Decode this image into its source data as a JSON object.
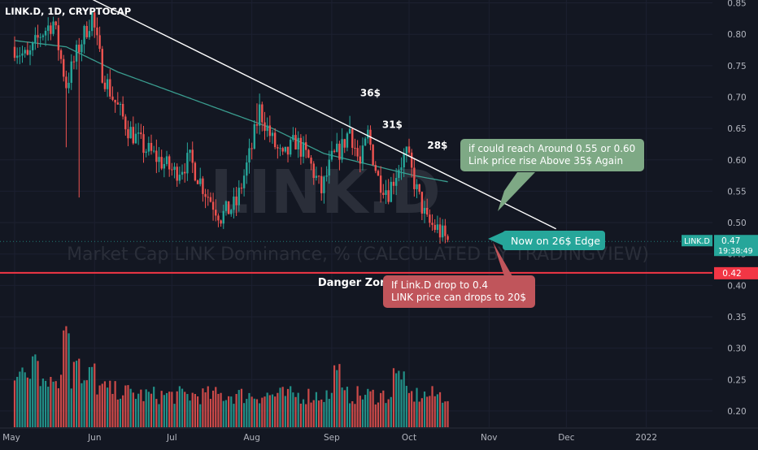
{
  "header": {
    "symbol_line": "LINK.D, 1D, CRYPTOCAP"
  },
  "watermark": {
    "ticker": "LINK.D",
    "description": "Market Cap LINK Dominance, % (CALCULATED BY TRADINGVIEW)"
  },
  "colors": {
    "background": "#131722",
    "up": "#26a69a",
    "down": "#ef5350",
    "ma": "#3a9d8f",
    "trendline": "#ffffff",
    "danger_line": "#f23645",
    "green_note": "#7ea985",
    "red_note": "#c0555b",
    "price_tag": "#26a69a"
  },
  "price_tag": {
    "symbol": "LINK.D",
    "value": "0.47",
    "countdown": "19:38:49"
  },
  "danger_tag": "0.42",
  "annotations": {
    "danger_zone": "Danger Zone",
    "peak_36": "36$",
    "peak_31": "31$",
    "peak_28": "28$",
    "note_green_line1": "if could reach Around 0.55 or 0.60",
    "note_green_line2": "Link price rise Above 35$ Again",
    "note_now": "Now on 26$ Edge",
    "note_red_line1": "If Link.D drop to 0.4",
    "note_red_line2": "LINK price can drops to 20$"
  },
  "chart_data": {
    "type": "candlestick",
    "title": "LINK.D, 1D, CRYPTOCAP",
    "xlabel": "",
    "ylabel": "",
    "ylim": [
      0.175,
      0.85
    ],
    "y_ticks": [
      0.2,
      0.25,
      0.3,
      0.35,
      0.4,
      0.45,
      0.5,
      0.55,
      0.6,
      0.65,
      0.7,
      0.75,
      0.8,
      0.85
    ],
    "y_tick_labels": [
      "0.20",
      "0.25",
      "0.30",
      "0.35",
      "0.40",
      "0.45",
      "0.50",
      "0.55",
      "0.60",
      "0.65",
      "0.70",
      "0.75",
      "0.80",
      "0.85"
    ],
    "x_ticks": [
      "May",
      "Jun",
      "Jul",
      "Aug",
      "Sep",
      "Oct",
      "Nov",
      "Dec",
      "2022"
    ],
    "anchors": [
      {
        "d": 0,
        "v": 0.78
      },
      {
        "d": 5,
        "v": 0.76
      },
      {
        "d": 10,
        "v": 0.8
      },
      {
        "d": 15,
        "v": 0.82
      },
      {
        "d": 20,
        "v": 0.72
      },
      {
        "d": 25,
        "v": 0.78
      },
      {
        "d": 30,
        "v": 0.83
      },
      {
        "d": 34,
        "v": 0.74
      },
      {
        "d": 38,
        "v": 0.7
      },
      {
        "d": 44,
        "v": 0.65
      },
      {
        "d": 50,
        "v": 0.62
      },
      {
        "d": 56,
        "v": 0.6
      },
      {
        "d": 62,
        "v": 0.58
      },
      {
        "d": 68,
        "v": 0.6
      },
      {
        "d": 74,
        "v": 0.55
      },
      {
        "d": 80,
        "v": 0.51
      },
      {
        "d": 86,
        "v": 0.53
      },
      {
        "d": 92,
        "v": 0.62
      },
      {
        "d": 95,
        "v": 0.68
      },
      {
        "d": 100,
        "v": 0.63
      },
      {
        "d": 104,
        "v": 0.6
      },
      {
        "d": 109,
        "v": 0.63
      },
      {
        "d": 114,
        "v": 0.6
      },
      {
        "d": 119,
        "v": 0.55
      },
      {
        "d": 123,
        "v": 0.6
      },
      {
        "d": 127,
        "v": 0.62
      },
      {
        "d": 130,
        "v": 0.65
      },
      {
        "d": 134,
        "v": 0.59
      },
      {
        "d": 137,
        "v": 0.64
      },
      {
        "d": 141,
        "v": 0.57
      },
      {
        "d": 145,
        "v": 0.55
      },
      {
        "d": 149,
        "v": 0.59
      },
      {
        "d": 152,
        "v": 0.61
      },
      {
        "d": 156,
        "v": 0.55
      },
      {
        "d": 160,
        "v": 0.5
      },
      {
        "d": 164,
        "v": 0.49
      },
      {
        "d": 168,
        "v": 0.47
      }
    ],
    "moving_average": [
      {
        "d": 0,
        "v": 0.79
      },
      {
        "d": 20,
        "v": 0.78
      },
      {
        "d": 40,
        "v": 0.74
      },
      {
        "d": 60,
        "v": 0.71
      },
      {
        "d": 80,
        "v": 0.68
      },
      {
        "d": 100,
        "v": 0.65
      },
      {
        "d": 120,
        "v": 0.61
      },
      {
        "d": 140,
        "v": 0.59
      },
      {
        "d": 155,
        "v": 0.575
      },
      {
        "d": 168,
        "v": 0.565
      }
    ],
    "trendline": {
      "d1": 28,
      "v1": 0.86,
      "d2": 210,
      "v2": 0.49
    },
    "danger_level": 0.42,
    "volume_max": 0.34,
    "volume_peaks": [
      {
        "d": 8,
        "v": 0.29
      },
      {
        "d": 20,
        "v": 0.335
      },
      {
        "d": 24,
        "v": 0.28
      },
      {
        "d": 30,
        "v": 0.27
      },
      {
        "d": 125,
        "v": 0.265
      },
      {
        "d": 148,
        "v": 0.26
      },
      {
        "d": 150,
        "v": 0.25
      }
    ]
  }
}
